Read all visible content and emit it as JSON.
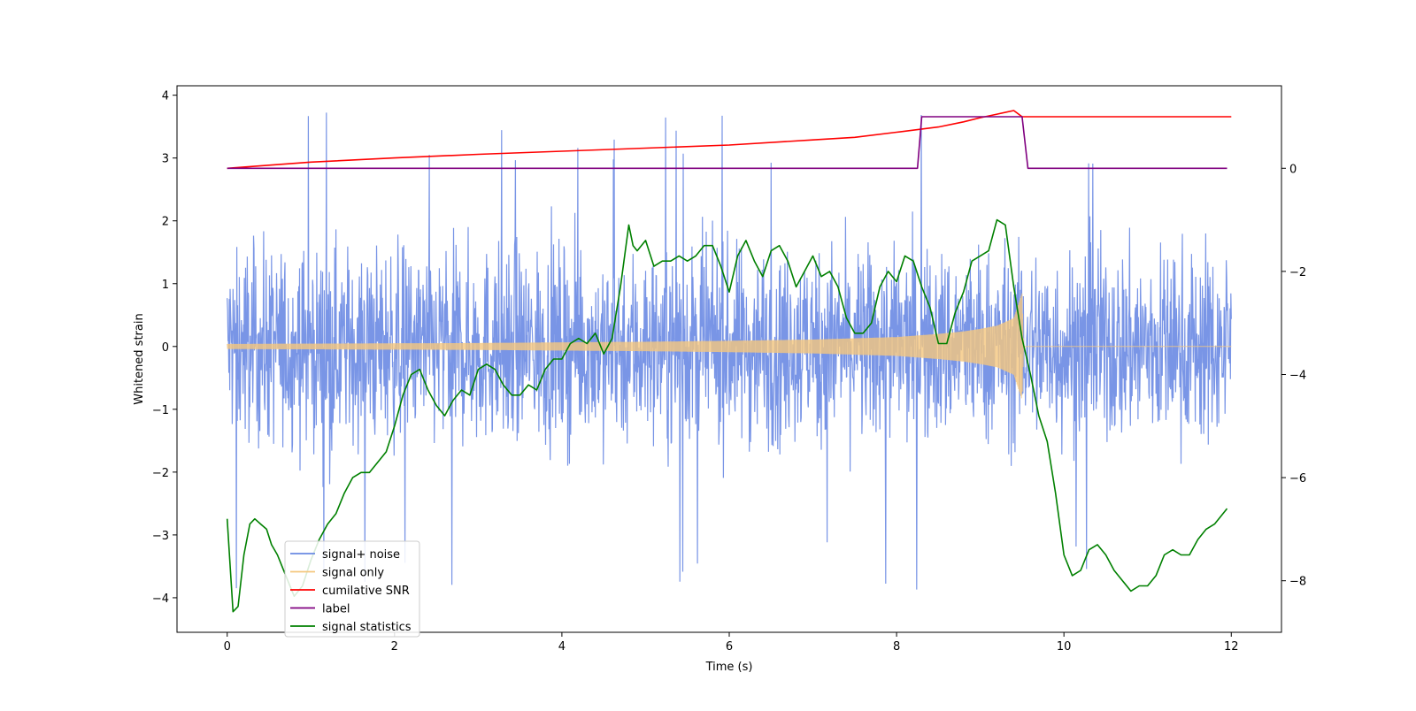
{
  "chart_data": {
    "type": "line",
    "title": "",
    "xlabel": "Time (s)",
    "ylabel": "Whitened strain",
    "ylabel_right": "",
    "xlim": [
      -0.6,
      12.6
    ],
    "ylim": [
      -4.55,
      4.15
    ],
    "ylim_right": [
      -9.0,
      1.6
    ],
    "x_ticks": [
      0,
      2,
      4,
      6,
      8,
      10,
      12
    ],
    "y_ticks": [
      -4,
      -3,
      -2,
      -1,
      0,
      1,
      2,
      3,
      4
    ],
    "y_ticks_right": [
      -8,
      -6,
      -4,
      -2,
      0
    ],
    "grid": false,
    "legend_position": "lower-left",
    "colors": {
      "signal_noise": "#6a8ae3",
      "signal_only": "#f5c77e",
      "snr": "#ff0000",
      "label": "#800080",
      "stats": "#008000"
    },
    "series": [
      {
        "name": "signal+ noise",
        "axis": "left",
        "x_range": [
          0,
          12
        ],
        "envelope_min": -2.4,
        "envelope_max": 2.4,
        "peak_min": -4.15,
        "peak_max": 3.75
      },
      {
        "name": "signal only",
        "axis": "left",
        "x": [
          0,
          1,
          2,
          3,
          4,
          5,
          6,
          7,
          7.5,
          8,
          8.5,
          8.8,
          9.0,
          9.2,
          9.4,
          9.5,
          9.52,
          12
        ],
        "amplitude": [
          0.04,
          0.045,
          0.05,
          0.055,
          0.065,
          0.075,
          0.09,
          0.11,
          0.13,
          0.15,
          0.2,
          0.24,
          0.28,
          0.33,
          0.45,
          0.85,
          0.0,
          0.0
        ]
      },
      {
        "name": "cumilative SNR",
        "axis": "right",
        "x": [
          0,
          1,
          2,
          3,
          4,
          5,
          6,
          7,
          7.5,
          8,
          8.5,
          8.8,
          9.0,
          9.2,
          9.4,
          9.5,
          12
        ],
        "y": [
          0.0,
          0.12,
          0.2,
          0.27,
          0.33,
          0.39,
          0.45,
          0.55,
          0.6,
          0.7,
          0.8,
          0.9,
          0.98,
          1.05,
          1.12,
          1.0,
          1.0
        ]
      },
      {
        "name": "label",
        "axis": "right",
        "x": [
          0,
          8.25,
          8.3,
          9.5,
          9.57,
          11.95
        ],
        "y": [
          0,
          0,
          1,
          1,
          0,
          0
        ]
      },
      {
        "name": "signal statistics",
        "axis": "right",
        "x": [
          0,
          0.07,
          0.13,
          0.2,
          0.27,
          0.33,
          0.4,
          0.47,
          0.53,
          0.6,
          0.7,
          0.8,
          0.9,
          1.0,
          1.1,
          1.2,
          1.3,
          1.4,
          1.5,
          1.6,
          1.7,
          1.8,
          1.9,
          2.0,
          2.1,
          2.2,
          2.3,
          2.4,
          2.5,
          2.6,
          2.7,
          2.8,
          2.9,
          3.0,
          3.1,
          3.2,
          3.3,
          3.4,
          3.5,
          3.6,
          3.7,
          3.8,
          3.9,
          4.0,
          4.1,
          4.2,
          4.3,
          4.4,
          4.5,
          4.6,
          4.7,
          4.8,
          4.85,
          4.9,
          5.0,
          5.1,
          5.2,
          5.3,
          5.4,
          5.5,
          5.6,
          5.7,
          5.8,
          5.9,
          6.0,
          6.1,
          6.2,
          6.3,
          6.4,
          6.5,
          6.6,
          6.7,
          6.8,
          6.9,
          7.0,
          7.1,
          7.2,
          7.3,
          7.4,
          7.5,
          7.6,
          7.7,
          7.8,
          7.9,
          8.0,
          8.1,
          8.2,
          8.3,
          8.4,
          8.5,
          8.6,
          8.7,
          8.8,
          8.9,
          9.0,
          9.1,
          9.2,
          9.3,
          9.4,
          9.5,
          9.6,
          9.7,
          9.8,
          9.9,
          10.0,
          10.1,
          10.2,
          10.3,
          10.4,
          10.5,
          10.6,
          10.7,
          10.8,
          10.9,
          11.0,
          11.1,
          11.2,
          11.3,
          11.4,
          11.5,
          11.6,
          11.7,
          11.8,
          11.95
        ],
        "y": [
          -6.8,
          -8.6,
          -8.5,
          -7.5,
          -6.9,
          -6.8,
          -6.9,
          -7.0,
          -7.3,
          -7.5,
          -7.9,
          -8.3,
          -8.1,
          -7.6,
          -7.2,
          -6.9,
          -6.7,
          -6.3,
          -6.0,
          -5.9,
          -5.9,
          -5.7,
          -5.5,
          -5.0,
          -4.4,
          -4.0,
          -3.9,
          -4.3,
          -4.6,
          -4.8,
          -4.5,
          -4.3,
          -4.4,
          -3.9,
          -3.8,
          -3.9,
          -4.2,
          -4.4,
          -4.4,
          -4.2,
          -4.3,
          -3.9,
          -3.7,
          -3.7,
          -3.4,
          -3.3,
          -3.4,
          -3.2,
          -3.6,
          -3.3,
          -2.3,
          -1.1,
          -1.5,
          -1.6,
          -1.4,
          -1.9,
          -1.8,
          -1.8,
          -1.7,
          -1.8,
          -1.7,
          -1.5,
          -1.5,
          -1.9,
          -2.4,
          -1.7,
          -1.4,
          -1.8,
          -2.1,
          -1.6,
          -1.5,
          -1.8,
          -2.3,
          -2.0,
          -1.7,
          -2.1,
          -2.0,
          -2.3,
          -2.9,
          -3.2,
          -3.2,
          -3.0,
          -2.3,
          -2.0,
          -2.2,
          -1.7,
          -1.8,
          -2.3,
          -2.7,
          -3.4,
          -3.4,
          -2.8,
          -2.4,
          -1.8,
          -1.7,
          -1.6,
          -1.0,
          -1.1,
          -2.3,
          -3.3,
          -4.0,
          -4.8,
          -5.3,
          -6.3,
          -7.5,
          -7.9,
          -7.8,
          -7.4,
          -7.3,
          -7.5,
          -7.8,
          -8.0,
          -8.2,
          -8.1,
          -8.1,
          -7.9,
          -7.5,
          -7.4,
          -7.5,
          -7.5,
          -7.2,
          -7.0,
          -6.9,
          -6.6
        ]
      }
    ]
  }
}
